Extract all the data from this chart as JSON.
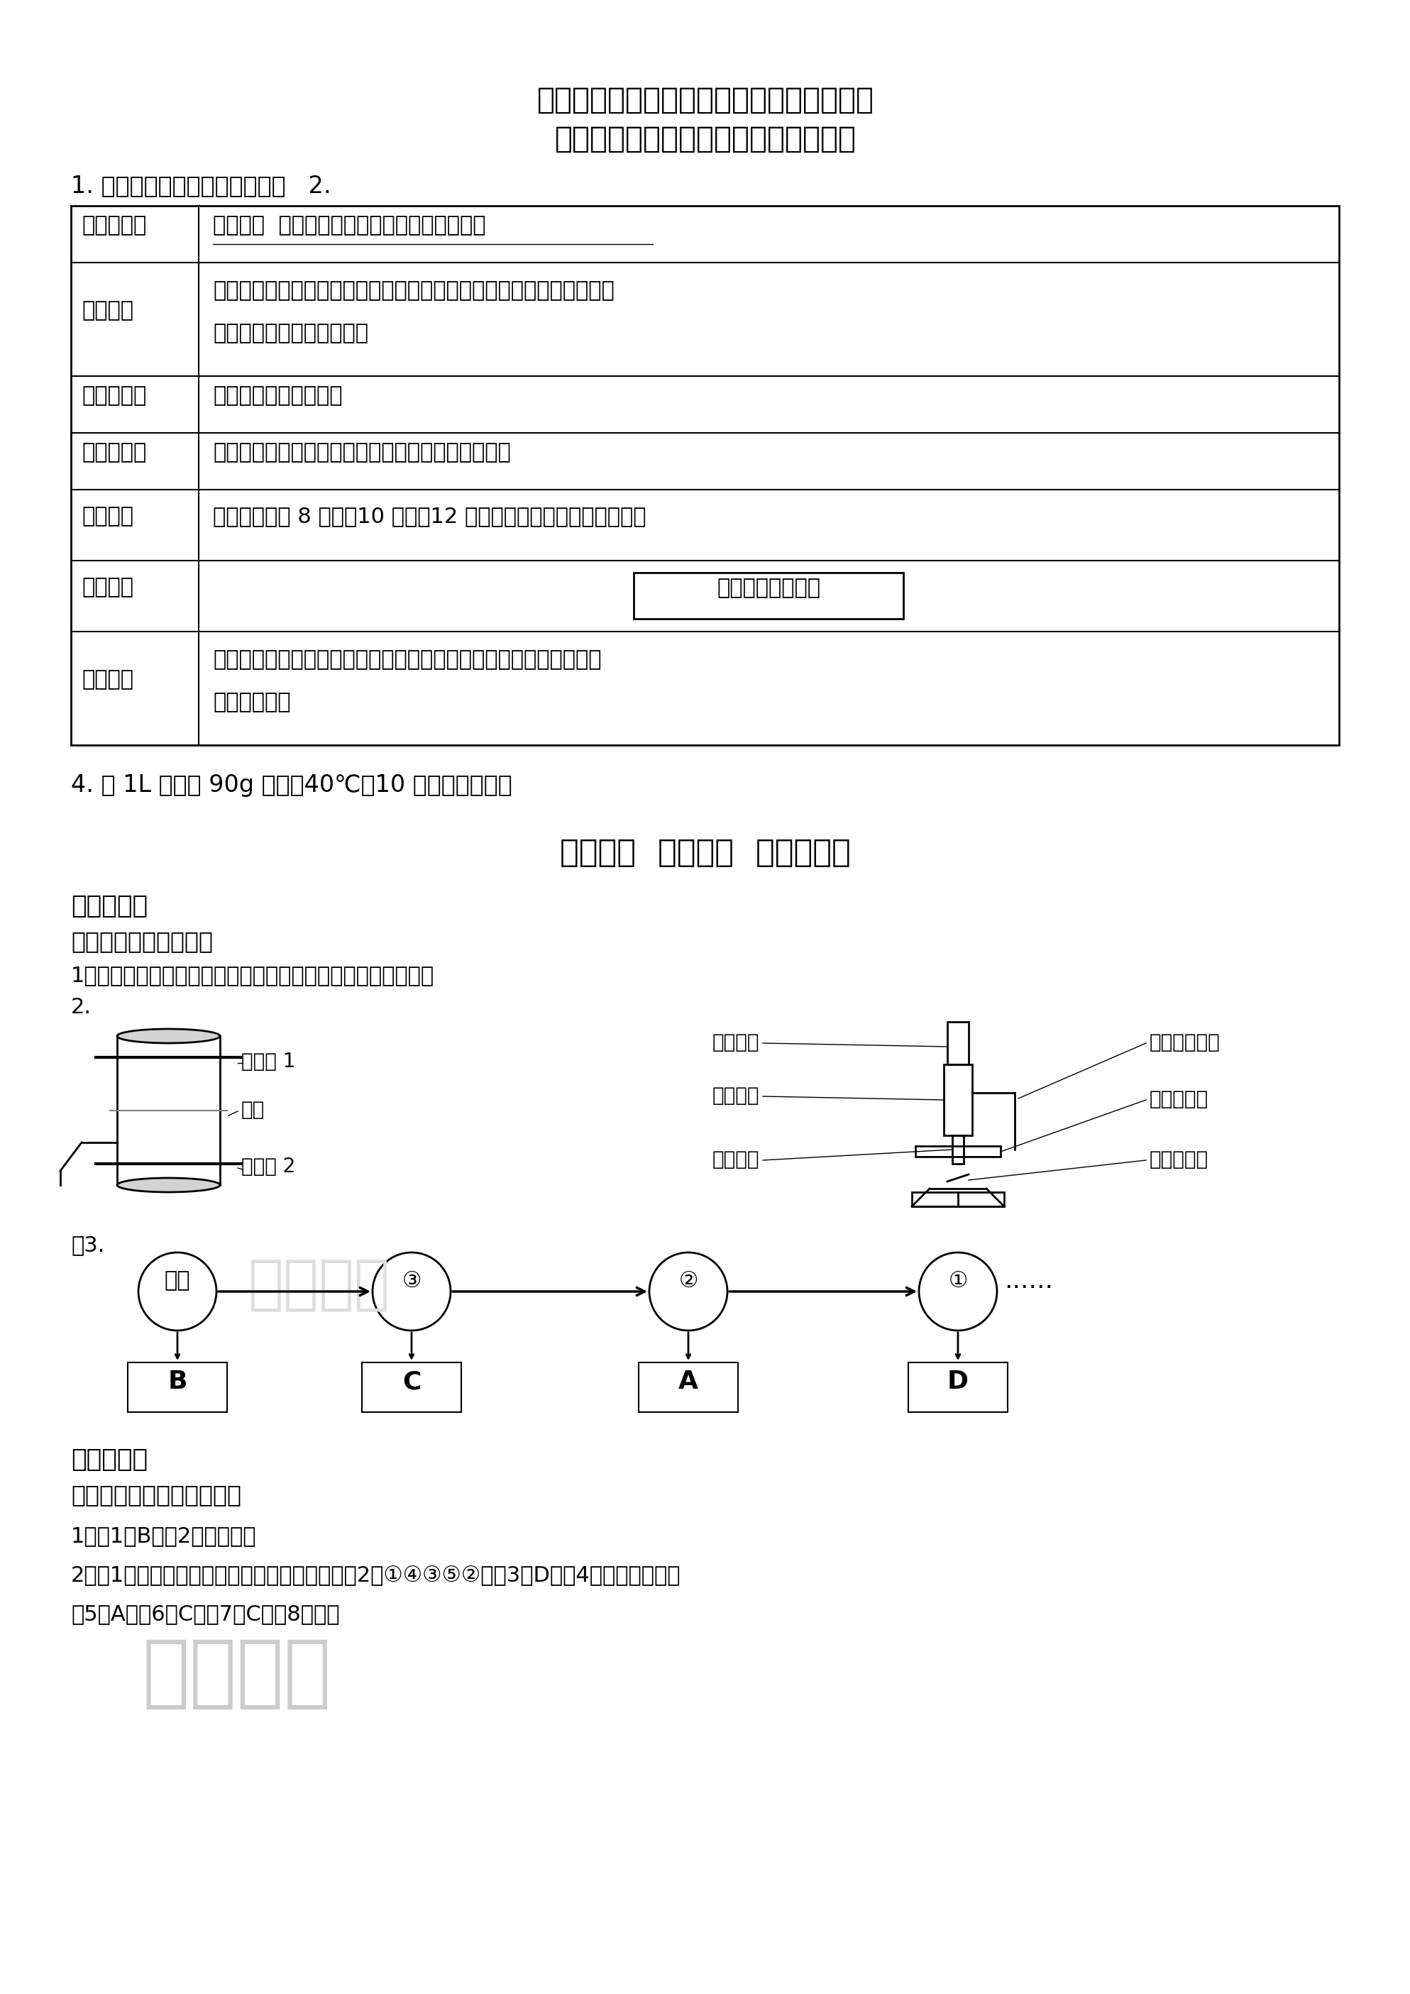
{
  "bg_color": "#ffffff",
  "title1": "小学六上科学《综合学习与评估》参考答案",
  "title2": "科学实践项目学习与评估（自制酸奶）",
  "line1": "1. 发酵温度、发酵时间、糖含量   2.",
  "table": {
    "rows": [
      {
        "label": "探究的问题",
        "content": "发酵时间  会影响酸奶制作时乳酸菌的发酵吗？",
        "underline": true
      },
      {
        "label": "我的预测",
        "content": "发酵时间会影响酸奶制作时乳酸菌的发酵，发酵时间长，酸奶品质好，\n发酵时间短，酸奶品质差。",
        "underline": false
      },
      {
        "label": "改变的条件",
        "content": "酸奶制作时的发酵时间",
        "underline": false
      },
      {
        "label": "不变的条件",
        "content": "发酵温度、糖含量等除发酵时间外的其他条件都不变",
        "underline": false
      },
      {
        "label": "如何改变",
        "content": "在发酵时间为 8 小时、10 小时、12 小时的时候，分别检测酸奶品质",
        "underline": false
      },
      {
        "label": "酸奶品质",
        "content": "根据实际情况填写",
        "box": true,
        "underline": false
      },
      {
        "label": "实验结论",
        "content": "发酵时间会影响酸奶制作时乳酸菌的发酵，酸奶品质随着发酵时间变\n长先好后坏。",
        "underline": false
      }
    ]
  },
  "line4": "4. 每 1L 牛奶加 90g 白糖、40℃、10 小时、有生命。",
  "section_title": "第一单元  微小世界  学习与评估",
  "subsection1": "科学加油站",
  "challenge1": "挑战一：对工具的认识",
  "q1_ans": "1．厚、薄、透明、放大、水滴（符合以上特点的物体都可以）",
  "q2": "2.",
  "microscope_labels_left": [
    "凸透镜 1",
    "纸筒",
    "凸透镜 2"
  ],
  "microscope_labels_right_bio": [
    "（目镜）",
    "（镜筒）",
    "（物镜）"
  ],
  "microscope_labels_right_scope": [
    "（调节旋钮）",
    "（载物台）",
    "（反光镜）"
  ],
  "q3_label": "题3.",
  "flow_labels": [
    "眼睛",
    "③",
    "②",
    "①"
  ],
  "flow_boxes": [
    "B",
    "C",
    "A",
    "D"
  ],
  "subsection2": "科学实践园",
  "challenge2": "挑战二：利用工具进行观察",
  "ans_line1": "1．（1）B；（2）小、复眼",
  "ans_line2": "2．（1）小刀、镊子、滴管、碘酒、吸水纸；（2）①④③⑤②；（3）D；（4）调节反光镜；",
  "ans_line3": "（5）A；（6）C；（7）C；（8）细胞"
}
